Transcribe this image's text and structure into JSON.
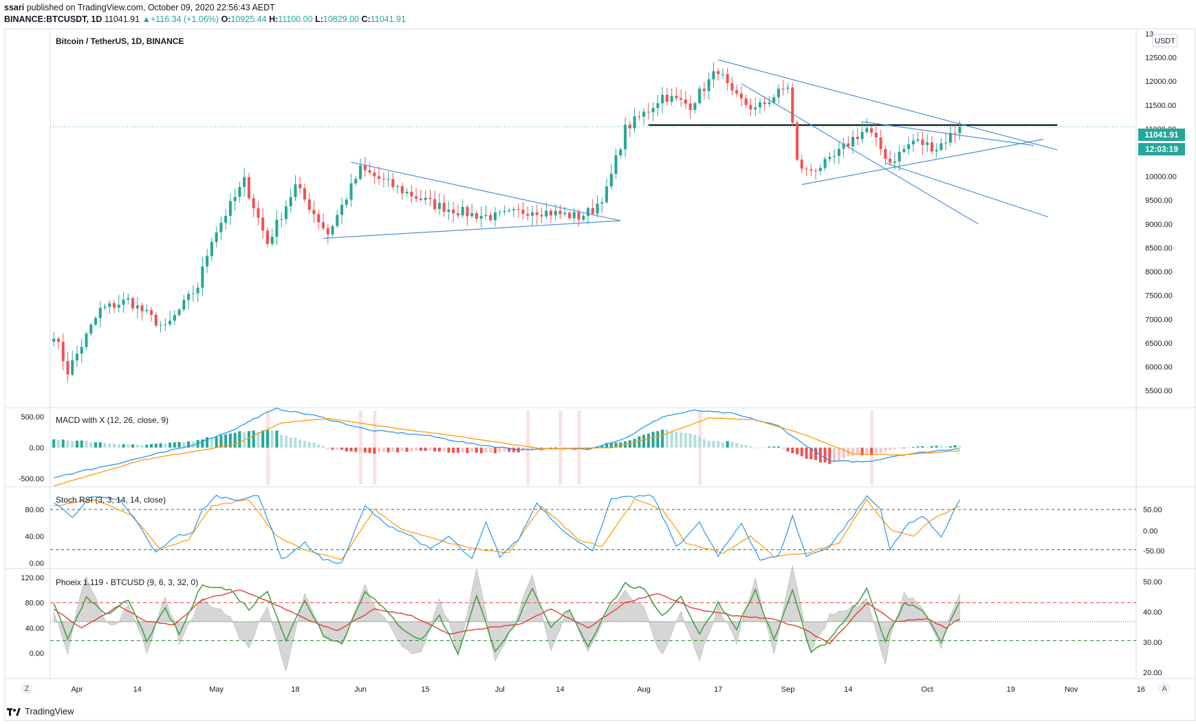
{
  "header": {
    "user": "ssari",
    "published_text": "published on TradingView.com, October 09, 2020 22:56:43 AEDT",
    "symbol_line": "BINANCE:BTCUSDT, 1D",
    "last": "11041.91",
    "change": "+116.34 (+1.06%)",
    "o_label": "O:",
    "o": "10925.44",
    "h_label": "H:",
    "h": "11100.00",
    "l_label": "L:",
    "l": "10829.00",
    "c_label": "C:",
    "c": "11041.91",
    "up_arrow": "▲"
  },
  "main_legend": "Bitcoin / TetherUS, 1D, BINANCE",
  "currency_badge": "USDT",
  "price_tag": "11041.91",
  "timer_tag": "12:03:19",
  "macd_legend": "MACD with X (12, 26, close, 9)",
  "stoch_legend": "Stoch RSI (3, 3, 14, 14, close)",
  "phoenix_legend": "Phoeix 1.119 - BTCUSD (9, 6, 3, 32, 0)",
  "footer_brand": "TradingView",
  "corner_left": "Z",
  "corner_right": "A",
  "colors": {
    "up": "#26a69a",
    "down": "#ef5350",
    "trend": "#4a90d9",
    "macd": "#2196f3",
    "signal": "#ff9800"
  },
  "chart_data": [
    {
      "type": "candlestick",
      "title": "Bitcoin / TetherUS, 1D, BINANCE",
      "x_ticks": [
        "Apr",
        "14",
        "May",
        "18",
        "Jun",
        "15",
        "Jul",
        "14",
        "Aug",
        "17",
        "Sep",
        "14",
        "Oct",
        "19",
        "Nov",
        "16"
      ],
      "y_ticks": [
        "13",
        "12500.00",
        "12000.00",
        "11500.00",
        "11000.00",
        "10500.00",
        "10000.00",
        "9500.00",
        "9000.00",
        "8500.00",
        "8000.00",
        "7500.00",
        "7000.00",
        "6500.00",
        "6000.00",
        "5500.00"
      ],
      "ylim": [
        5300,
        13100
      ],
      "anchors": [
        [
          "2020-03-27",
          6700
        ],
        [
          "2020-03-30",
          5900
        ],
        [
          "2020-04-06",
          7200
        ],
        [
          "2020-04-12",
          7400
        ],
        [
          "2020-04-20",
          6800
        ],
        [
          "2020-04-27",
          7700
        ],
        [
          "2020-04-30",
          8700
        ],
        [
          "2020-05-07",
          9900
        ],
        [
          "2020-05-12",
          8600
        ],
        [
          "2020-05-18",
          9800
        ],
        [
          "2020-05-25",
          8800
        ],
        [
          "2020-06-01",
          10150
        ],
        [
          "2020-06-10",
          9700
        ],
        [
          "2020-06-17",
          9400
        ],
        [
          "2020-06-25",
          9200
        ],
        [
          "2020-06-30",
          9150
        ],
        [
          "2020-07-08",
          9300
        ],
        [
          "2020-07-18",
          9150
        ],
        [
          "2020-07-21",
          9300
        ],
        [
          "2020-07-24",
          9700
        ],
        [
          "2020-07-28",
          11000
        ],
        [
          "2020-08-02",
          11400
        ],
        [
          "2020-08-05",
          11700
        ],
        [
          "2020-08-11",
          11500
        ],
        [
          "2020-08-17",
          12250
        ],
        [
          "2020-08-20",
          11700
        ],
        [
          "2020-08-25",
          11400
        ],
        [
          "2020-09-01",
          11900
        ],
        [
          "2020-09-03",
          10300
        ],
        [
          "2020-09-05",
          10100
        ],
        [
          "2020-09-10",
          10300
        ],
        [
          "2020-09-15",
          10800
        ],
        [
          "2020-09-18",
          11000
        ],
        [
          "2020-09-23",
          10300
        ],
        [
          "2020-09-28",
          10750
        ],
        [
          "2020-10-03",
          10600
        ],
        [
          "2020-10-08",
          11041.91
        ]
      ],
      "current_price": 11041.91,
      "resistance_level": 11080,
      "trendlines": [
        {
          "from": [
            "2020-05-30",
            10300
          ],
          "to": [
            "2020-07-27",
            9070
          ]
        },
        {
          "from": [
            "2020-05-24",
            8700
          ],
          "to": [
            "2020-07-27",
            9070
          ]
        },
        {
          "from": [
            "2020-08-17",
            12450
          ],
          "to": [
            "2020-10-29",
            10560
          ]
        },
        {
          "from": [
            "2020-08-22",
            11950
          ],
          "to": [
            "2020-10-12",
            9000
          ]
        },
        {
          "from": [
            "2020-09-04",
            9830
          ],
          "to": [
            "2020-10-26",
            10780
          ]
        },
        {
          "from": [
            "2020-09-17",
            11150
          ],
          "to": [
            "2020-10-24",
            10650
          ]
        },
        {
          "from": [
            "2020-09-22",
            10280
          ],
          "to": [
            "2020-10-27",
            9150
          ]
        }
      ]
    },
    {
      "type": "line",
      "title": "MACD with X (12, 26, close, 9)",
      "y_ticks": [
        "500.00",
        "0.00",
        "-500.00"
      ],
      "ylim": [
        -700,
        700
      ],
      "macd_anchors": [
        [
          "2020-03-27",
          -480
        ],
        [
          "2020-04-10",
          -250
        ],
        [
          "2020-04-25",
          20
        ],
        [
          "2020-05-05",
          300
        ],
        [
          "2020-05-10",
          500
        ],
        [
          "2020-05-14",
          630
        ],
        [
          "2020-05-22",
          520
        ],
        [
          "2020-06-03",
          280
        ],
        [
          "2020-06-15",
          200
        ],
        [
          "2020-06-25",
          60
        ],
        [
          "2020-07-05",
          -30
        ],
        [
          "2020-07-20",
          -20
        ],
        [
          "2020-07-28",
          150
        ],
        [
          "2020-08-05",
          500
        ],
        [
          "2020-08-12",
          600
        ],
        [
          "2020-08-20",
          550
        ],
        [
          "2020-08-30",
          350
        ],
        [
          "2020-09-04",
          80
        ],
        [
          "2020-09-10",
          -220
        ],
        [
          "2020-09-18",
          -230
        ],
        [
          "2020-09-25",
          -120
        ],
        [
          "2020-10-08",
          -10
        ]
      ],
      "signal_anchors": [
        [
          "2020-03-27",
          -620
        ],
        [
          "2020-04-15",
          -200
        ],
        [
          "2020-05-05",
          50
        ],
        [
          "2020-05-15",
          400
        ],
        [
          "2020-05-25",
          470
        ],
        [
          "2020-06-10",
          300
        ],
        [
          "2020-06-25",
          150
        ],
        [
          "2020-07-10",
          -20
        ],
        [
          "2020-07-25",
          0
        ],
        [
          "2020-08-05",
          200
        ],
        [
          "2020-08-15",
          480
        ],
        [
          "2020-08-25",
          450
        ],
        [
          "2020-09-05",
          200
        ],
        [
          "2020-09-15",
          -100
        ],
        [
          "2020-09-25",
          -120
        ],
        [
          "2020-10-08",
          -50
        ]
      ],
      "highlight_dates": [
        "2020-05-12",
        "2020-06-01",
        "2020-06-04",
        "2020-07-07",
        "2020-07-14",
        "2020-07-18",
        "2020-08-13",
        "2020-09-19"
      ]
    },
    {
      "type": "line",
      "title": "Stoch RSI (3, 3, 14, 14, close)",
      "y_ticks_left": [
        "80.00",
        "40.00",
        "0.00"
      ],
      "y_ticks_right": [
        "50.00",
        "0.00",
        "-50.00"
      ],
      "ylim": [
        -10,
        110
      ],
      "levels": [
        80,
        20
      ],
      "k_anchors": [
        [
          "2020-03-27",
          90
        ],
        [
          "2020-03-31",
          70
        ],
        [
          "2020-04-04",
          98
        ],
        [
          "2020-04-10",
          95
        ],
        [
          "2020-04-14",
          60
        ],
        [
          "2020-04-18",
          15
        ],
        [
          "2020-04-22",
          40
        ],
        [
          "2020-04-26",
          45
        ],
        [
          "2020-04-28",
          80
        ],
        [
          "2020-05-01",
          100
        ],
        [
          "2020-05-05",
          95
        ],
        [
          "2020-05-10",
          100
        ],
        [
          "2020-05-13",
          50
        ],
        [
          "2020-05-15",
          5
        ],
        [
          "2020-05-20",
          30
        ],
        [
          "2020-05-24",
          5
        ],
        [
          "2020-05-28",
          0
        ],
        [
          "2020-06-02",
          85
        ],
        [
          "2020-06-06",
          60
        ],
        [
          "2020-06-12",
          40
        ],
        [
          "2020-06-16",
          20
        ],
        [
          "2020-06-20",
          40
        ],
        [
          "2020-06-25",
          5
        ],
        [
          "2020-06-28",
          60
        ],
        [
          "2020-07-01",
          10
        ],
        [
          "2020-07-05",
          35
        ],
        [
          "2020-07-09",
          90
        ],
        [
          "2020-07-13",
          60
        ],
        [
          "2020-07-18",
          30
        ],
        [
          "2020-07-21",
          20
        ],
        [
          "2020-07-25",
          95
        ],
        [
          "2020-07-31",
          100
        ],
        [
          "2020-08-03",
          100
        ],
        [
          "2020-08-08",
          25
        ],
        [
          "2020-08-13",
          60
        ],
        [
          "2020-08-17",
          10
        ],
        [
          "2020-08-22",
          60
        ],
        [
          "2020-08-26",
          5
        ],
        [
          "2020-08-30",
          10
        ],
        [
          "2020-09-02",
          70
        ],
        [
          "2020-09-05",
          10
        ],
        [
          "2020-09-10",
          25
        ],
        [
          "2020-09-15",
          70
        ],
        [
          "2020-09-18",
          100
        ],
        [
          "2020-09-21",
          80
        ],
        [
          "2020-09-23",
          20
        ],
        [
          "2020-09-27",
          60
        ],
        [
          "2020-09-30",
          70
        ],
        [
          "2020-10-04",
          40
        ],
        [
          "2020-10-08",
          95
        ]
      ],
      "d_anchors": [
        [
          "2020-03-27",
          85
        ],
        [
          "2020-04-05",
          95
        ],
        [
          "2020-04-13",
          70
        ],
        [
          "2020-04-19",
          20
        ],
        [
          "2020-04-25",
          35
        ],
        [
          "2020-04-30",
          85
        ],
        [
          "2020-05-08",
          95
        ],
        [
          "2020-05-14",
          40
        ],
        [
          "2020-05-20",
          20
        ],
        [
          "2020-05-28",
          5
        ],
        [
          "2020-06-04",
          80
        ],
        [
          "2020-06-10",
          50
        ],
        [
          "2020-06-20",
          30
        ],
        [
          "2020-06-27",
          20
        ],
        [
          "2020-07-03",
          15
        ],
        [
          "2020-07-10",
          85
        ],
        [
          "2020-07-18",
          35
        ],
        [
          "2020-07-23",
          25
        ],
        [
          "2020-07-30",
          95
        ],
        [
          "2020-08-05",
          80
        ],
        [
          "2020-08-10",
          30
        ],
        [
          "2020-08-18",
          15
        ],
        [
          "2020-08-24",
          40
        ],
        [
          "2020-08-29",
          10
        ],
        [
          "2020-09-05",
          15
        ],
        [
          "2020-09-12",
          30
        ],
        [
          "2020-09-18",
          95
        ],
        [
          "2020-09-23",
          50
        ],
        [
          "2020-09-28",
          40
        ],
        [
          "2020-10-02",
          65
        ],
        [
          "2020-10-08",
          85
        ]
      ]
    },
    {
      "type": "line",
      "title": "Phoeix 1.119 - BTCUSD (9, 6, 3, 32, 0)",
      "y_ticks_left": [
        "120.00",
        "80.00",
        "40.00",
        "0.00"
      ],
      "y_ticks_right": [
        "50.00",
        "40.00",
        "30.00",
        "20.00"
      ],
      "ylim": [
        -35,
        125
      ],
      "levels": [
        80,
        20
      ],
      "baseline": 50,
      "green_anchors": [
        [
          "2020-03-27",
          80
        ],
        [
          "2020-03-30",
          20
        ],
        [
          "2020-04-03",
          90
        ],
        [
          "2020-04-08",
          60
        ],
        [
          "2020-04-12",
          85
        ],
        [
          "2020-04-16",
          20
        ],
        [
          "2020-04-20",
          70
        ],
        [
          "2020-04-23",
          30
        ],
        [
          "2020-04-28",
          110
        ],
        [
          "2020-05-04",
          100
        ],
        [
          "2020-05-08",
          70
        ],
        [
          "2020-05-12",
          100
        ],
        [
          "2020-05-16",
          20
        ],
        [
          "2020-05-20",
          85
        ],
        [
          "2020-05-24",
          30
        ],
        [
          "2020-05-28",
          15
        ],
        [
          "2020-06-02",
          100
        ],
        [
          "2020-06-06",
          70
        ],
        [
          "2020-06-10",
          40
        ],
        [
          "2020-06-14",
          20
        ],
        [
          "2020-06-18",
          60
        ],
        [
          "2020-06-22",
          0
        ],
        [
          "2020-06-26",
          90
        ],
        [
          "2020-06-30",
          5
        ],
        [
          "2020-07-04",
          40
        ],
        [
          "2020-07-08",
          100
        ],
        [
          "2020-07-12",
          40
        ],
        [
          "2020-07-16",
          70
        ],
        [
          "2020-07-20",
          10
        ],
        [
          "2020-07-24",
          70
        ],
        [
          "2020-07-28",
          110
        ],
        [
          "2020-08-01",
          100
        ],
        [
          "2020-08-05",
          60
        ],
        [
          "2020-08-09",
          90
        ],
        [
          "2020-08-13",
          30
        ],
        [
          "2020-08-17",
          80
        ],
        [
          "2020-08-21",
          40
        ],
        [
          "2020-08-25",
          100
        ],
        [
          "2020-08-29",
          20
        ],
        [
          "2020-09-02",
          100
        ],
        [
          "2020-09-06",
          0
        ],
        [
          "2020-09-10",
          20
        ],
        [
          "2020-09-14",
          60
        ],
        [
          "2020-09-18",
          100
        ],
        [
          "2020-09-22",
          20
        ],
        [
          "2020-09-26",
          80
        ],
        [
          "2020-09-30",
          70
        ],
        [
          "2020-10-04",
          20
        ],
        [
          "2020-10-08",
          80
        ]
      ],
      "red_anchors": [
        [
          "2020-03-27",
          70
        ],
        [
          "2020-04-02",
          40
        ],
        [
          "2020-04-10",
          75
        ],
        [
          "2020-04-16",
          50
        ],
        [
          "2020-04-22",
          45
        ],
        [
          "2020-04-28",
          85
        ],
        [
          "2020-05-06",
          100
        ],
        [
          "2020-05-13",
          80
        ],
        [
          "2020-05-20",
          55
        ],
        [
          "2020-05-27",
          35
        ],
        [
          "2020-06-04",
          70
        ],
        [
          "2020-06-12",
          60
        ],
        [
          "2020-06-20",
          30
        ],
        [
          "2020-06-28",
          40
        ],
        [
          "2020-07-05",
          45
        ],
        [
          "2020-07-12",
          70
        ],
        [
          "2020-07-20",
          40
        ],
        [
          "2020-07-28",
          80
        ],
        [
          "2020-08-04",
          95
        ],
        [
          "2020-08-12",
          70
        ],
        [
          "2020-08-20",
          60
        ],
        [
          "2020-08-28",
          55
        ],
        [
          "2020-09-04",
          40
        ],
        [
          "2020-09-10",
          15
        ],
        [
          "2020-09-18",
          80
        ],
        [
          "2020-09-24",
          50
        ],
        [
          "2020-10-01",
          55
        ],
        [
          "2020-10-05",
          40
        ],
        [
          "2020-10-08",
          55
        ]
      ]
    }
  ]
}
